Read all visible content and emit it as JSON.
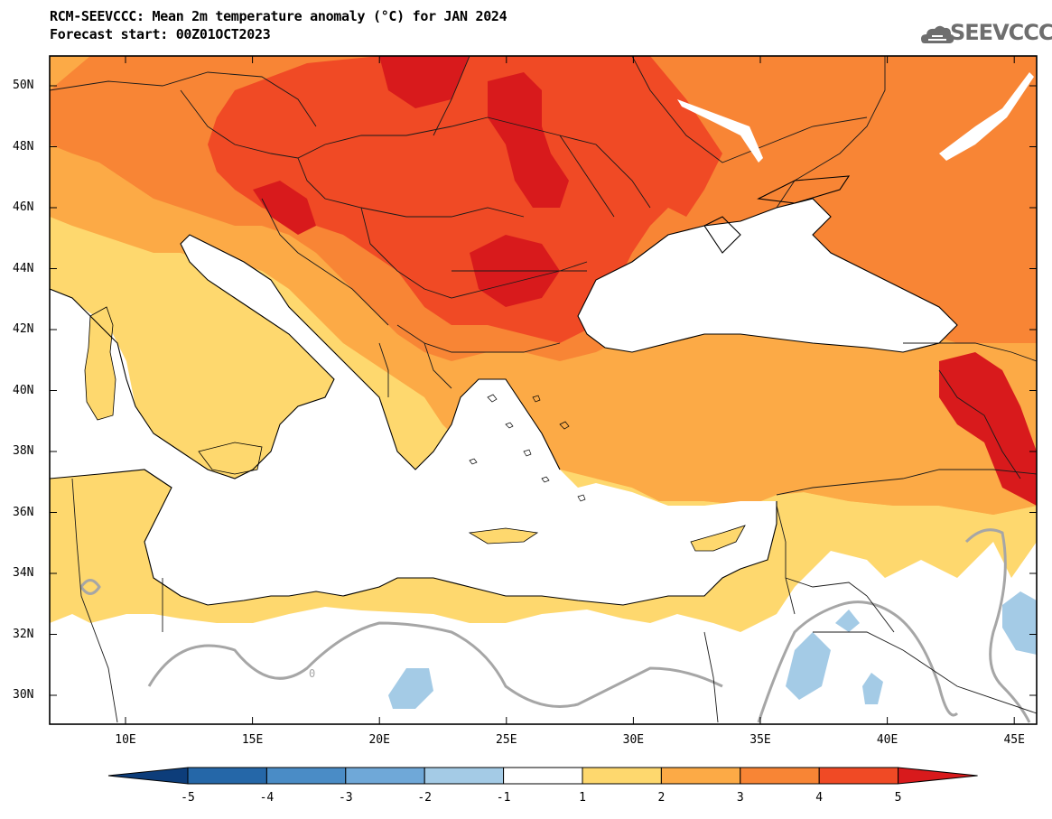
{
  "title": {
    "line1": "RCM-SEEVCCC: Mean 2m temperature anomaly (°C) for JAN 2024",
    "line2": "Forecast start: 00Z01OCT2023"
  },
  "logo": {
    "text": "SEEVCCC",
    "icon": "cloud-icon"
  },
  "lat_labels": [
    "50N",
    "48N",
    "46N",
    "44N",
    "42N",
    "40N",
    "38N",
    "36N",
    "34N",
    "32N",
    "30N"
  ],
  "lon_labels": [
    "10E",
    "15E",
    "20E",
    "25E",
    "30E",
    "35E",
    "40E",
    "45E"
  ],
  "colorbar": {
    "labels": [
      "-5",
      "-4",
      "-3",
      "-2",
      "-1",
      "1",
      "2",
      "3",
      "4",
      "5"
    ],
    "colors": [
      "#0d3d7a",
      "#2567a8",
      "#4a8cc6",
      "#6fa8d8",
      "#a4cbe6",
      "#ffffff",
      "#fed86e",
      "#fcaa46",
      "#f88535",
      "#f04a25",
      "#d81a1c"
    ]
  },
  "contour_label": "0",
  "map_colors": {
    "sea": "#ffffff",
    "c1_2": "#fed86e",
    "c2_3": "#fcaa46",
    "c3_4": "#f88535",
    "c4_5": "#f04a25",
    "c5p": "#d81a1c",
    "n1_2": "#a4cbe6",
    "contour_gray": "#a6a6a6"
  }
}
